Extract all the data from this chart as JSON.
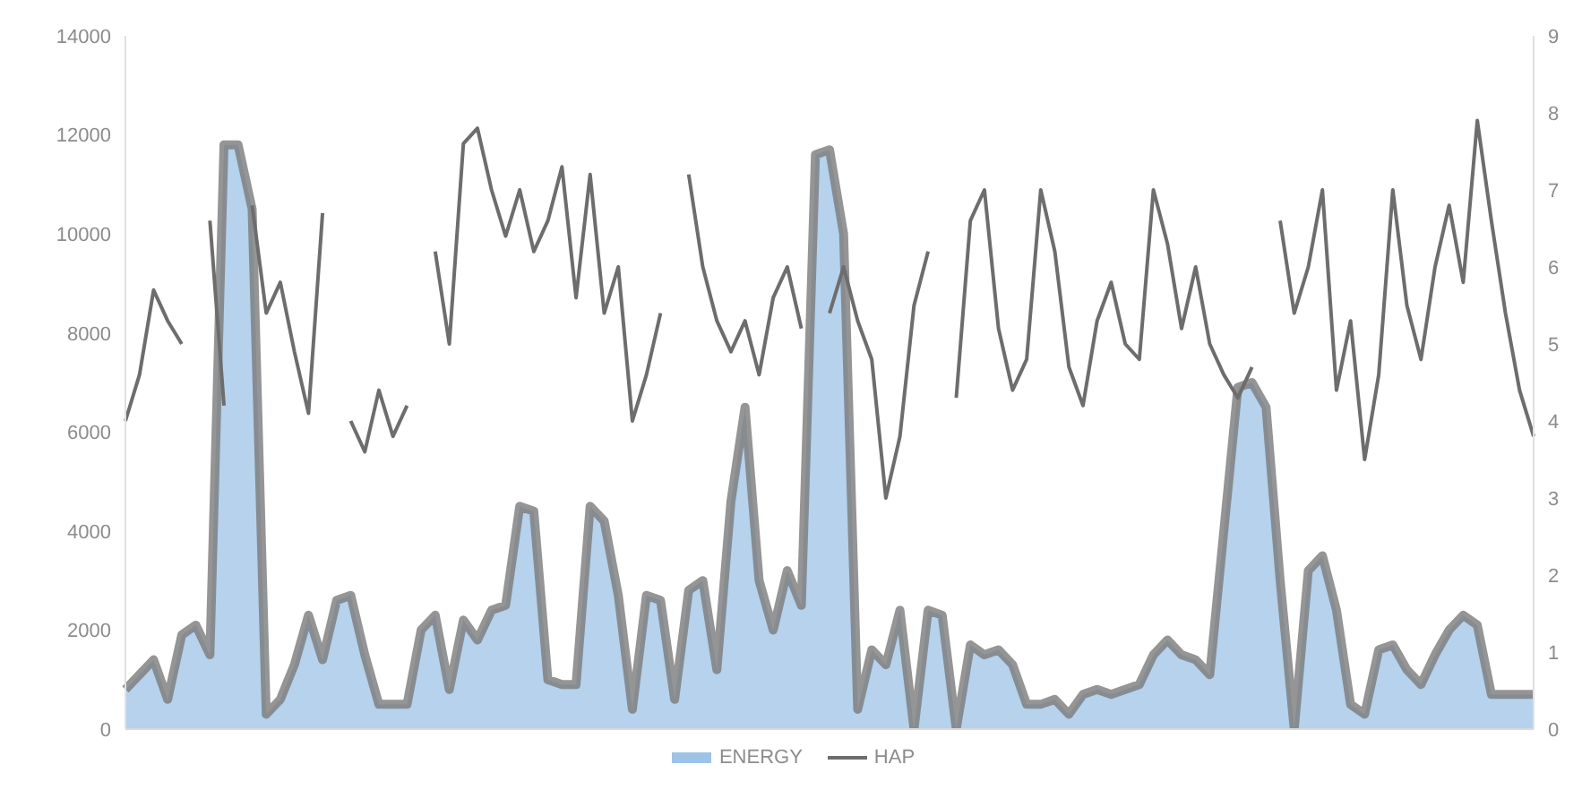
{
  "chart_data": {
    "type": "area",
    "categories": [
      null,
      null,
      null,
      null,
      null,
      null,
      null,
      null,
      null,
      null,
      null,
      null,
      null,
      null,
      null,
      null,
      null,
      null,
      null,
      null,
      null,
      null,
      null,
      null,
      null,
      null,
      null,
      null,
      null,
      null,
      null,
      null,
      null,
      null,
      null,
      null,
      null,
      null,
      null,
      null,
      null,
      null,
      null,
      null,
      null,
      null,
      null,
      null,
      null,
      null,
      null,
      null,
      null,
      null,
      null,
      null,
      null,
      null,
      null,
      null,
      null,
      null,
      null,
      null,
      null,
      null,
      null,
      null,
      null,
      null,
      null,
      null,
      null,
      null,
      null,
      null,
      null,
      null,
      null,
      null,
      null,
      null,
      null,
      null,
      null,
      null,
      null,
      null,
      null,
      null,
      null,
      null,
      null,
      null,
      null,
      null,
      null,
      null,
      null,
      null,
      null
    ],
    "series": [
      {
        "name": "ENERGY",
        "color": "#9dc3e6",
        "values": [
          800,
          1100,
          1400,
          600,
          1900,
          2100,
          1500,
          11800,
          11800,
          10500,
          300,
          600,
          1300,
          2300,
          1400,
          2600,
          2700,
          1500,
          500,
          500,
          500,
          2000,
          2300,
          800,
          2200,
          1800,
          2400,
          2500,
          4500,
          4400,
          1000,
          900,
          900,
          4500,
          4200,
          2700,
          400,
          2700,
          2600,
          600,
          2800,
          3000,
          1200,
          4600,
          6500,
          3000,
          2000,
          3200,
          2500,
          11600,
          11700,
          10000,
          400,
          1600,
          1300,
          2400,
          0,
          2400,
          2300,
          0,
          1700,
          1500,
          1600,
          1300,
          500,
          500,
          600,
          300,
          700,
          800,
          700,
          800,
          900,
          1500,
          1800,
          1500,
          1400,
          1100,
          4000,
          6900,
          7000,
          6500,
          3000,
          0,
          3200,
          3500,
          2400,
          500,
          300,
          1600,
          1700,
          1200,
          900,
          1500,
          2000,
          2300,
          2100,
          700,
          700,
          700,
          700
        ]
      },
      {
        "name": "HAP",
        "type": "line",
        "axis": "y2",
        "color": "#6d6d6d",
        "values": [
          4.0,
          4.6,
          5.7,
          5.3,
          5.0,
          null,
          6.6,
          4.2,
          null,
          6.8,
          5.4,
          5.8,
          4.9,
          4.1,
          6.7,
          null,
          4.0,
          3.6,
          4.4,
          3.8,
          4.2,
          null,
          6.2,
          5.0,
          7.6,
          7.8,
          7.0,
          6.4,
          7.0,
          6.2,
          6.6,
          7.3,
          5.6,
          7.2,
          5.4,
          6.0,
          4.0,
          4.6,
          5.4,
          null,
          7.2,
          6.0,
          5.3,
          4.9,
          5.3,
          4.6,
          5.6,
          6.0,
          5.2,
          null,
          5.4,
          6.0,
          5.3,
          4.8,
          3.0,
          3.8,
          5.5,
          6.2,
          null,
          4.3,
          6.6,
          7.0,
          5.2,
          4.4,
          4.8,
          7.0,
          6.2,
          4.7,
          4.2,
          5.3,
          5.8,
          5.0,
          4.8,
          7.0,
          6.3,
          5.2,
          6.0,
          5.0,
          4.6,
          4.3,
          4.7,
          null,
          6.6,
          5.4,
          6.0,
          7.0,
          4.4,
          5.3,
          3.5,
          4.6,
          7.0,
          5.5,
          4.8,
          6.0,
          6.8,
          5.8,
          7.9,
          6.6,
          5.4,
          4.4,
          3.8
        ]
      }
    ],
    "ylim": [
      0,
      14000
    ],
    "yticks": [
      0,
      2000,
      4000,
      6000,
      8000,
      10000,
      12000,
      14000
    ],
    "y2lim": [
      0,
      9
    ],
    "y2ticks": [
      0,
      1,
      2,
      3,
      4,
      5,
      6,
      7,
      8,
      9
    ],
    "tick_labels": "y",
    "legend": "bottom",
    "grid": false,
    "line_style": "solid",
    "marker": "none"
  }
}
